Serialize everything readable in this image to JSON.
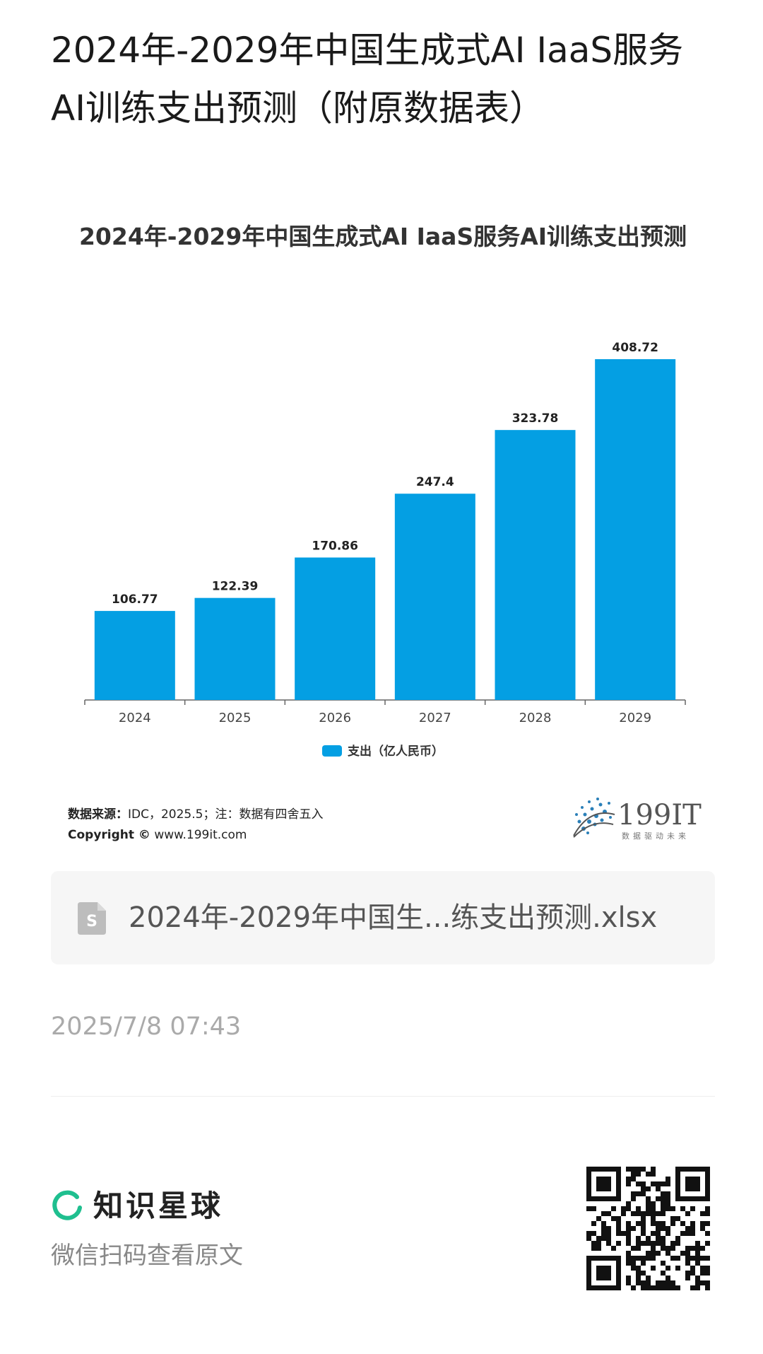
{
  "page": {
    "title": "2024年-2029年中国生成式AI IaaS服务AI训练支出预测（附原数据表）"
  },
  "chart_data": {
    "type": "bar",
    "title": "2024年-2029年中国生成式AI IaaS服务AI训练支出预测",
    "categories": [
      "2024",
      "2025",
      "2026",
      "2027",
      "2028",
      "2029"
    ],
    "series": [
      {
        "name": "支出（亿人民币）",
        "values": [
          106.77,
          122.39,
          170.86,
          247.4,
          323.78,
          408.72
        ],
        "labels": [
          "106.77",
          "122.39",
          "170.86",
          "247.4",
          "323.78",
          "408.72"
        ],
        "color": "#049fe3"
      }
    ],
    "ylim": [
      0,
      408.72
    ],
    "grid": false,
    "legend": "bottom"
  },
  "source": {
    "label": "数据来源：",
    "text": "IDC，2025.5；注：数据有四舍五入",
    "copyright_label": "Copyright ©",
    "site": "www.199it.com",
    "brand_number": "199IT",
    "brand_slogan": "数据驱动未来"
  },
  "file": {
    "name": "2024年-2029年中国生...练支出预测.xlsx",
    "icon": "spreadsheet-file-icon"
  },
  "timestamp": "2025/7/8 07:43",
  "footer": {
    "brand": "知识星球",
    "hint": "微信扫码查看原文",
    "qr": "qr-code"
  },
  "colors": {
    "bar": "#049fe3",
    "brand_green": "#1fbf8f"
  }
}
